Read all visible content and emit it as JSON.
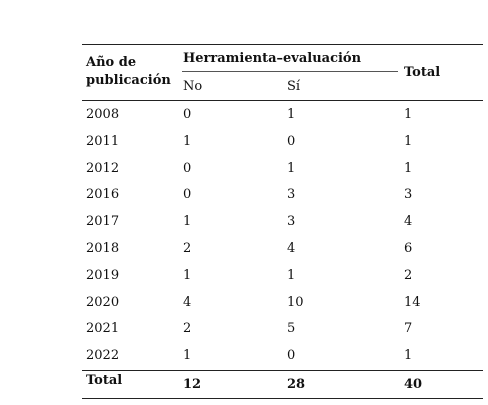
{
  "table": {
    "header": {
      "year": "Año de publicación",
      "group": "Herramienta–evaluación",
      "no": "No",
      "si": "Sí",
      "total": "Total"
    },
    "rows": [
      [
        2008,
        0,
        1,
        1
      ],
      [
        2011,
        1,
        0,
        1
      ],
      [
        2012,
        0,
        1,
        1
      ],
      [
        2016,
        0,
        3,
        3
      ],
      [
        2017,
        1,
        3,
        4
      ],
      [
        2018,
        2,
        4,
        6
      ],
      [
        2019,
        1,
        1,
        2
      ],
      [
        2020,
        4,
        10,
        14
      ],
      [
        2021,
        2,
        5,
        7
      ],
      [
        2022,
        1,
        0,
        1
      ]
    ],
    "total_row": [
      "Total",
      12,
      28,
      40
    ]
  }
}
